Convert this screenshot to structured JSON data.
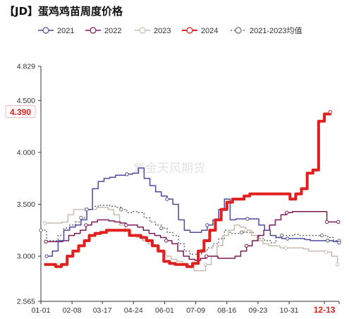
{
  "title": "【JD】蛋鸡鸡苗周度价格",
  "watermark": "紫金天风期货",
  "chart_data": {
    "type": "line",
    "title": "【JD】蛋鸡鸡苗周度价格",
    "xlabel": "",
    "ylabel": "",
    "ylim": [
      2.565,
      4.829
    ],
    "y_ticks": [
      "4.829",
      "4.500",
      "4.000",
      "3.500",
      "3.000",
      "2.565"
    ],
    "x_range": [
      "01-01",
      "12-31"
    ],
    "x_ticks": [
      "01-01",
      "02-08",
      "03-17",
      "04-24",
      "06-01",
      "07-09",
      "08-16",
      "09-23",
      "10-31",
      "12-13"
    ],
    "highlight_tick": "12-13",
    "grid": false,
    "legend_position": "top",
    "callout": {
      "label": "4.390",
      "value": 4.39,
      "color": "#e0201e"
    },
    "series": [
      {
        "name": "2021",
        "color": "#4b4a9c",
        "width": 1.5,
        "dash": "",
        "points": [
          [
            "01-08",
            3.0
          ],
          [
            "01-15",
            3.05
          ],
          [
            "01-22",
            3.15
          ],
          [
            "01-29",
            3.25
          ],
          [
            "02-05",
            3.28
          ],
          [
            "02-12",
            3.3
          ],
          [
            "02-19",
            3.35
          ],
          [
            "02-26",
            3.45
          ],
          [
            "03-05",
            3.65
          ],
          [
            "03-12",
            3.72
          ],
          [
            "03-19",
            3.75
          ],
          [
            "03-26",
            3.76
          ],
          [
            "04-02",
            3.78
          ],
          [
            "04-09",
            3.78
          ],
          [
            "04-16",
            3.79
          ],
          [
            "04-23",
            3.8
          ],
          [
            "04-30",
            3.85
          ],
          [
            "05-07",
            3.75
          ],
          [
            "05-14",
            3.68
          ],
          [
            "05-21",
            3.62
          ],
          [
            "05-28",
            3.58
          ],
          [
            "06-04",
            3.55
          ],
          [
            "06-11",
            3.5
          ],
          [
            "06-18",
            3.35
          ],
          [
            "06-25",
            3.25
          ],
          [
            "07-02",
            3.23
          ],
          [
            "07-09",
            3.23
          ],
          [
            "07-16",
            3.25
          ],
          [
            "07-23",
            3.3
          ],
          [
            "07-30",
            3.35
          ],
          [
            "08-06",
            3.45
          ],
          [
            "08-13",
            3.55
          ],
          [
            "08-20",
            3.35
          ],
          [
            "08-27",
            3.36
          ],
          [
            "09-03",
            3.36
          ],
          [
            "09-10",
            3.36
          ],
          [
            "09-17",
            3.36
          ],
          [
            "09-24",
            3.3
          ],
          [
            "10-01",
            3.25
          ],
          [
            "10-08",
            3.2
          ],
          [
            "10-15",
            3.18
          ],
          [
            "10-22",
            3.17
          ],
          [
            "10-29",
            3.17
          ],
          [
            "11-05",
            3.17
          ],
          [
            "11-12",
            3.17
          ],
          [
            "11-19",
            3.16
          ],
          [
            "11-26",
            3.15
          ],
          [
            "12-03",
            3.15
          ],
          [
            "12-10",
            3.15
          ],
          [
            "12-17",
            3.15
          ],
          [
            "12-24",
            3.14
          ],
          [
            "12-31",
            3.13
          ]
        ]
      },
      {
        "name": "2022",
        "color": "#7e1a5a",
        "width": 1.5,
        "dash": "",
        "points": [
          [
            "01-07",
            3.14
          ],
          [
            "01-14",
            3.14
          ],
          [
            "01-21",
            3.14
          ],
          [
            "01-28",
            3.15
          ],
          [
            "02-04",
            3.2
          ],
          [
            "02-11",
            3.22
          ],
          [
            "02-18",
            3.25
          ],
          [
            "02-25",
            3.3
          ],
          [
            "03-04",
            3.33
          ],
          [
            "03-11",
            3.35
          ],
          [
            "03-18",
            3.35
          ],
          [
            "03-25",
            3.34
          ],
          [
            "04-01",
            3.33
          ],
          [
            "04-08",
            3.32
          ],
          [
            "04-15",
            3.3
          ],
          [
            "04-22",
            3.3
          ],
          [
            "04-29",
            3.28
          ],
          [
            "05-06",
            3.25
          ],
          [
            "05-13",
            3.22
          ],
          [
            "05-20",
            3.2
          ],
          [
            "05-27",
            3.18
          ],
          [
            "06-03",
            3.15
          ],
          [
            "06-10",
            3.12
          ],
          [
            "06-17",
            3.05
          ],
          [
            "06-24",
            3.0
          ],
          [
            "07-01",
            2.97
          ],
          [
            "07-08",
            2.96
          ],
          [
            "07-15",
            2.98
          ],
          [
            "07-22",
            3.0
          ],
          [
            "07-29",
            3.0
          ],
          [
            "08-05",
            2.98
          ],
          [
            "08-12",
            2.98
          ],
          [
            "08-19",
            2.98
          ],
          [
            "08-26",
            3.0
          ],
          [
            "09-02",
            3.05
          ],
          [
            "09-09",
            3.1
          ],
          [
            "09-16",
            3.15
          ],
          [
            "09-23",
            3.2
          ],
          [
            "09-30",
            3.25
          ],
          [
            "10-07",
            3.3
          ],
          [
            "10-14",
            3.35
          ],
          [
            "10-21",
            3.4
          ],
          [
            "10-28",
            3.42
          ],
          [
            "11-04",
            3.43
          ],
          [
            "11-11",
            3.43
          ],
          [
            "11-18",
            3.43
          ],
          [
            "11-25",
            3.43
          ],
          [
            "12-02",
            3.43
          ],
          [
            "12-09",
            3.43
          ],
          [
            "12-16",
            3.33
          ],
          [
            "12-23",
            3.33
          ],
          [
            "12-30",
            3.33
          ]
        ]
      },
      {
        "name": "2023",
        "color": "#c9bcae",
        "width": 1.5,
        "dash": "",
        "points": [
          [
            "01-06",
            3.32
          ],
          [
            "01-13",
            3.32
          ],
          [
            "01-20",
            3.32
          ],
          [
            "01-27",
            3.33
          ],
          [
            "02-03",
            3.4
          ],
          [
            "02-10",
            3.45
          ],
          [
            "02-17",
            3.45
          ],
          [
            "02-24",
            3.45
          ],
          [
            "03-03",
            3.45
          ],
          [
            "03-10",
            3.47
          ],
          [
            "03-17",
            3.47
          ],
          [
            "03-24",
            3.45
          ],
          [
            "03-31",
            3.4
          ],
          [
            "04-07",
            3.3
          ],
          [
            "04-14",
            3.25
          ],
          [
            "04-21",
            3.2
          ],
          [
            "04-28",
            3.18
          ],
          [
            "05-05",
            3.15
          ],
          [
            "05-12",
            3.12
          ],
          [
            "05-19",
            3.1
          ],
          [
            "05-26",
            3.05
          ],
          [
            "06-02",
            3.0
          ],
          [
            "06-09",
            2.97
          ],
          [
            "06-16",
            2.95
          ],
          [
            "06-23",
            2.93
          ],
          [
            "06-30",
            2.9
          ],
          [
            "07-07",
            2.86
          ],
          [
            "07-14",
            2.86
          ],
          [
            "07-21",
            2.92
          ],
          [
            "07-28",
            3.0
          ],
          [
            "08-04",
            3.1
          ],
          [
            "08-11",
            3.2
          ],
          [
            "08-18",
            3.25
          ],
          [
            "08-25",
            3.3
          ],
          [
            "09-01",
            3.28
          ],
          [
            "09-08",
            3.25
          ],
          [
            "09-15",
            3.2
          ],
          [
            "09-22",
            3.15
          ],
          [
            "09-29",
            3.12
          ],
          [
            "10-06",
            3.1
          ],
          [
            "10-13",
            3.1
          ],
          [
            "10-20",
            3.08
          ],
          [
            "10-27",
            3.08
          ],
          [
            "11-03",
            3.08
          ],
          [
            "11-10",
            3.08
          ],
          [
            "11-17",
            3.07
          ],
          [
            "11-24",
            3.05
          ],
          [
            "12-01",
            3.05
          ],
          [
            "12-08",
            3.05
          ],
          [
            "12-15",
            3.04
          ],
          [
            "12-22",
            3.0
          ],
          [
            "12-29",
            2.92
          ]
        ]
      },
      {
        "name": "2024",
        "color": "#e0201e",
        "width": 4,
        "dash": "",
        "points": [
          [
            "01-05",
            2.92
          ],
          [
            "01-12",
            2.92
          ],
          [
            "01-19",
            2.9
          ],
          [
            "01-26",
            2.92
          ],
          [
            "02-02",
            3.0
          ],
          [
            "02-09",
            3.05
          ],
          [
            "02-16",
            3.1
          ],
          [
            "02-23",
            3.15
          ],
          [
            "03-01",
            3.2
          ],
          [
            "03-08",
            3.22
          ],
          [
            "03-15",
            3.23
          ],
          [
            "03-22",
            3.25
          ],
          [
            "03-29",
            3.25
          ],
          [
            "04-05",
            3.25
          ],
          [
            "04-12",
            3.25
          ],
          [
            "04-19",
            3.2
          ],
          [
            "04-26",
            3.2
          ],
          [
            "05-03",
            3.18
          ],
          [
            "05-10",
            3.15
          ],
          [
            "05-17",
            3.1
          ],
          [
            "05-24",
            3.05
          ],
          [
            "05-31",
            2.95
          ],
          [
            "06-07",
            2.93
          ],
          [
            "06-14",
            2.92
          ],
          [
            "06-21",
            2.92
          ],
          [
            "06-28",
            2.9
          ],
          [
            "07-05",
            2.93
          ],
          [
            "07-12",
            3.05
          ],
          [
            "07-19",
            3.15
          ],
          [
            "07-26",
            3.25
          ],
          [
            "08-02",
            3.35
          ],
          [
            "08-09",
            3.45
          ],
          [
            "08-16",
            3.52
          ],
          [
            "08-23",
            3.55
          ],
          [
            "08-30",
            3.55
          ],
          [
            "09-06",
            3.58
          ],
          [
            "09-13",
            3.6
          ],
          [
            "09-20",
            3.6
          ],
          [
            "09-27",
            3.6
          ],
          [
            "10-04",
            3.6
          ],
          [
            "10-11",
            3.6
          ],
          [
            "10-18",
            3.6
          ],
          [
            "10-25",
            3.6
          ],
          [
            "11-01",
            3.55
          ],
          [
            "11-08",
            3.6
          ],
          [
            "11-15",
            3.65
          ],
          [
            "11-22",
            3.8
          ],
          [
            "11-29",
            3.83
          ],
          [
            "12-06",
            4.3
          ],
          [
            "12-13",
            4.37
          ],
          [
            "12-20",
            4.39
          ]
        ]
      },
      {
        "name": "2021-2023均值",
        "color": "#6a6a6a",
        "width": 1.5,
        "dash": "2,2.5",
        "points": [
          [
            "01-01",
            3.25
          ],
          [
            "01-08",
            3.15
          ],
          [
            "01-15",
            3.15
          ],
          [
            "01-22",
            3.2
          ],
          [
            "01-29",
            3.27
          ],
          [
            "02-05",
            3.3
          ],
          [
            "02-12",
            3.33
          ],
          [
            "02-19",
            3.37
          ],
          [
            "02-26",
            3.45
          ],
          [
            "03-05",
            3.48
          ],
          [
            "03-12",
            3.49
          ],
          [
            "03-19",
            3.49
          ],
          [
            "03-26",
            3.48
          ],
          [
            "04-02",
            3.47
          ],
          [
            "04-09",
            3.45
          ],
          [
            "04-16",
            3.42
          ],
          [
            "04-23",
            3.43
          ],
          [
            "04-30",
            3.42
          ],
          [
            "05-07",
            3.37
          ],
          [
            "05-14",
            3.33
          ],
          [
            "05-21",
            3.3
          ],
          [
            "05-28",
            3.27
          ],
          [
            "06-04",
            3.23
          ],
          [
            "06-11",
            3.2
          ],
          [
            "06-18",
            3.12
          ],
          [
            "06-25",
            3.05
          ],
          [
            "07-02",
            3.02
          ],
          [
            "07-09",
            3.02
          ],
          [
            "07-16",
            3.05
          ],
          [
            "07-23",
            3.08
          ],
          [
            "07-30",
            3.12
          ],
          [
            "08-06",
            3.17
          ],
          [
            "08-13",
            3.25
          ],
          [
            "08-20",
            3.22
          ],
          [
            "08-27",
            3.22
          ],
          [
            "09-03",
            3.23
          ],
          [
            "09-10",
            3.23
          ],
          [
            "09-17",
            3.2
          ],
          [
            "09-24",
            3.17
          ],
          [
            "10-01",
            3.15
          ],
          [
            "10-08",
            3.13
          ],
          [
            "10-15",
            3.18
          ],
          [
            "10-22",
            3.2
          ],
          [
            "10-29",
            3.2
          ],
          [
            "11-05",
            3.21
          ],
          [
            "11-12",
            3.2
          ],
          [
            "11-19",
            3.2
          ],
          [
            "11-26",
            3.2
          ],
          [
            "12-03",
            3.2
          ],
          [
            "12-10",
            3.2
          ],
          [
            "12-17",
            3.18
          ],
          [
            "12-24",
            3.15
          ],
          [
            "12-31",
            3.15
          ]
        ]
      }
    ]
  }
}
